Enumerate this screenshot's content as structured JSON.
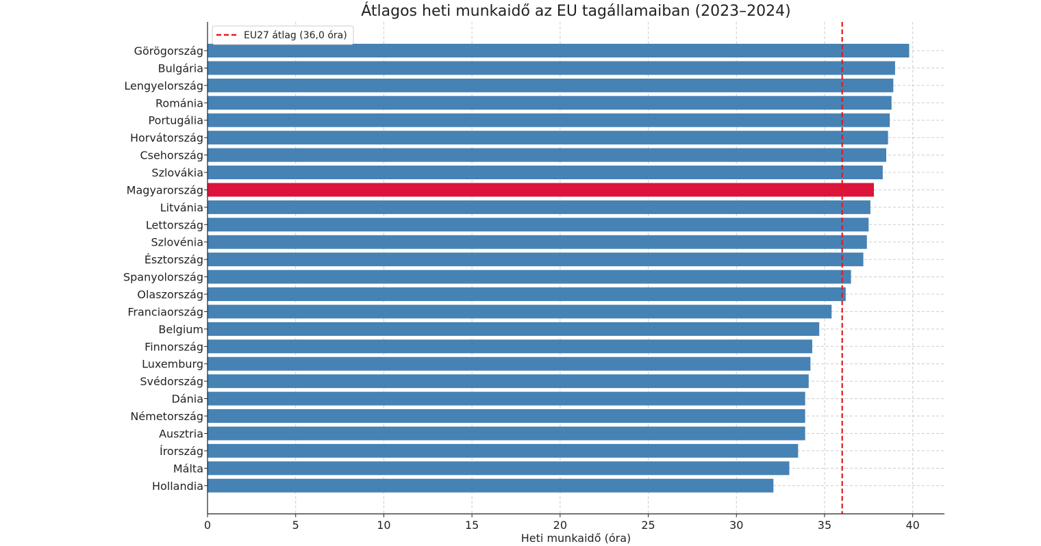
{
  "chart_data": {
    "type": "bar",
    "orientation": "horizontal",
    "title": "Átlagos heti munkaidő az EU tagállamaiban (2023–2024)",
    "xlabel": "Heti munkaidő (óra)",
    "ylabel": "",
    "xlim": [
      0,
      41.8
    ],
    "xticks": [
      0,
      5,
      10,
      15,
      20,
      25,
      30,
      35,
      40
    ],
    "grid": true,
    "legend_position": "top-left",
    "categories": [
      "Görögország",
      "Bulgária",
      "Lengyelország",
      "Románia",
      "Portugália",
      "Horvátország",
      "Csehország",
      "Szlovákia",
      "Magyarország",
      "Litvánia",
      "Lettország",
      "Szlovénia",
      "Észtország",
      "Spanyolország",
      "Olaszország",
      "Franciaország",
      "Belgium",
      "Finnország",
      "Luxemburg",
      "Svédország",
      "Dánia",
      "Németország",
      "Ausztria",
      "Írország",
      "Málta",
      "Hollandia"
    ],
    "values": [
      39.8,
      39.0,
      38.9,
      38.8,
      38.7,
      38.6,
      38.5,
      38.3,
      37.8,
      37.6,
      37.5,
      37.4,
      37.2,
      36.5,
      36.2,
      35.4,
      34.7,
      34.3,
      34.2,
      34.1,
      33.9,
      33.9,
      33.9,
      33.5,
      33.0,
      32.1
    ],
    "highlight": "Magyarország",
    "colors": {
      "bar": "#4682b4",
      "highlight": "#dc143c",
      "reference_line": "#e31a1c",
      "grid": "#cccccc",
      "axis": "#222222"
    },
    "reference_line": {
      "value": 36.0,
      "label": "EU27 átlag (36,0 óra)",
      "style": "dashed"
    }
  }
}
